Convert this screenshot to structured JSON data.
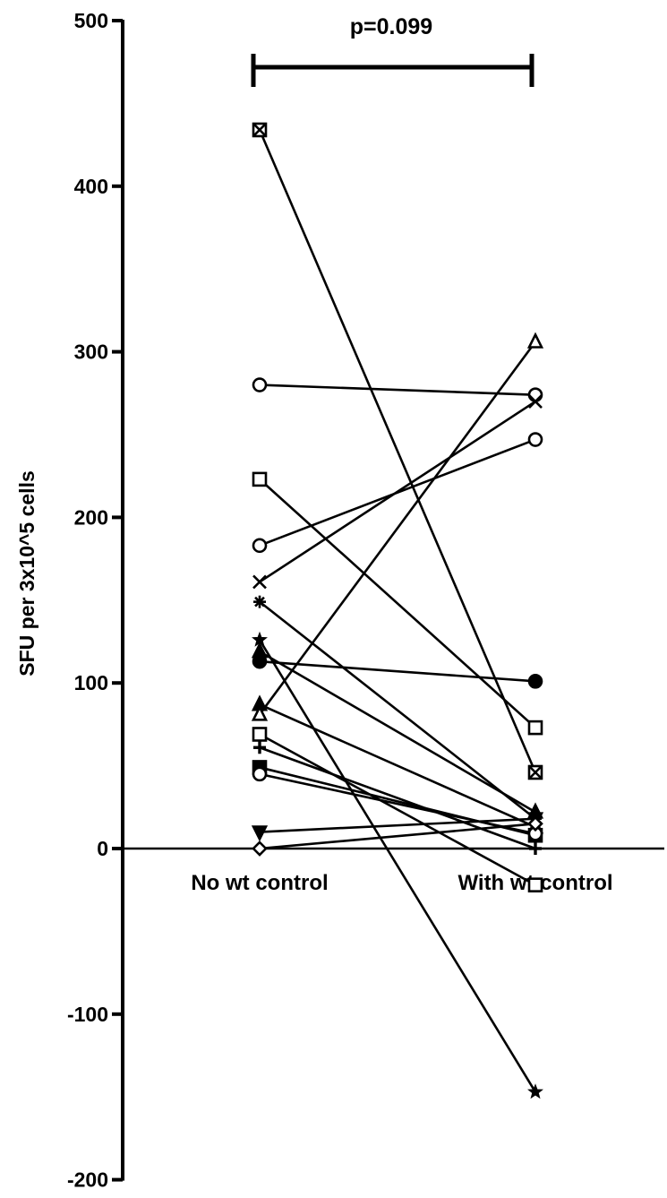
{
  "chart_data": {
    "type": "line",
    "ylabel": "SFU per 3x10^5 cells",
    "ylim": [
      -200,
      500
    ],
    "yticks": [
      -200,
      -100,
      0,
      100,
      200,
      300,
      400,
      500
    ],
    "categories": [
      "No wt control",
      "With wt control"
    ],
    "annotation": "p=0.099",
    "series": [
      {
        "marker": "square-x",
        "values": [
          434,
          46
        ]
      },
      {
        "marker": "circle",
        "values": [
          280,
          274
        ]
      },
      {
        "marker": "square",
        "values": [
          223,
          73
        ]
      },
      {
        "marker": "circle",
        "values": [
          183,
          247
        ]
      },
      {
        "marker": "x",
        "values": [
          161,
          270
        ]
      },
      {
        "marker": "asterisk",
        "values": [
          149,
          18
        ]
      },
      {
        "marker": "star",
        "values": [
          126,
          -147
        ]
      },
      {
        "marker": "triangle-filled",
        "values": [
          119,
          22
        ]
      },
      {
        "marker": "circle-filled",
        "values": [
          113,
          101
        ]
      },
      {
        "marker": "triangle-filled",
        "values": [
          87,
          13
        ]
      },
      {
        "marker": "triangle",
        "values": [
          81,
          306
        ]
      },
      {
        "marker": "square",
        "values": [
          69,
          -22
        ]
      },
      {
        "marker": "plus",
        "values": [
          61,
          0
        ]
      },
      {
        "marker": "square-filled",
        "values": [
          49,
          8
        ]
      },
      {
        "marker": "circle",
        "values": [
          45,
          9
        ]
      },
      {
        "marker": "triangle-down-filled",
        "values": [
          10,
          18
        ]
      },
      {
        "marker": "diamond",
        "values": [
          0,
          15
        ]
      }
    ]
  }
}
